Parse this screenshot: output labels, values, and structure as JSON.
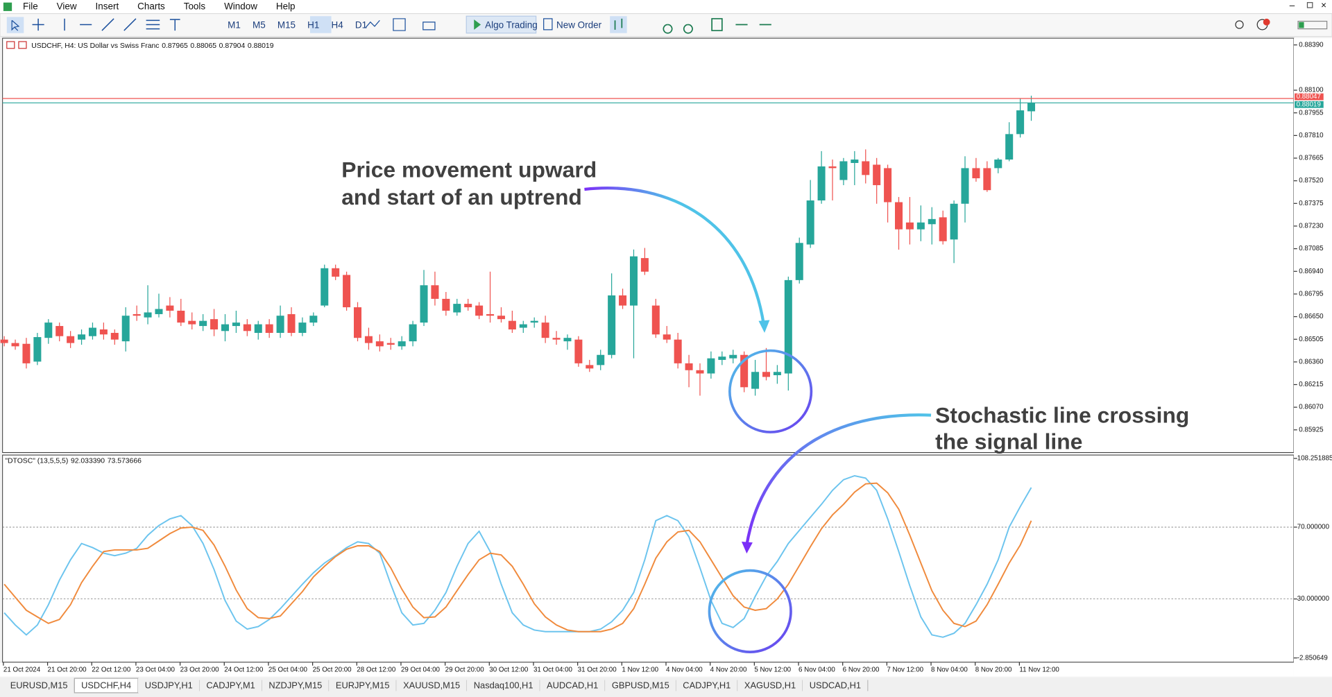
{
  "menu": [
    "File",
    "View",
    "Insert",
    "Charts",
    "Tools",
    "Window",
    "Help"
  ],
  "toolbar": {
    "timeframes": [
      "M1",
      "M5",
      "M15",
      "H1",
      "H4",
      "D1"
    ],
    "algo_trading": "Algo Trading",
    "new_order": "New Order"
  },
  "chart": {
    "symbol_line": "USDCHF, H4:  US Dollar vs Swiss Franc",
    "up_color": "#26a69a",
    "down_color": "#ef5350",
    "ylim": [
      0.8578,
      0.88433
    ],
    "yticks": [
      {
        "value": 0.8839,
        "label": "0.88390"
      },
      {
        "value": 0.881,
        "label": "0.88100"
      },
      0.87955,
      {
        "value": 0.8781,
        "label": "0.87810"
      },
      0.87665,
      {
        "value": 0.8752,
        "label": "0.87520"
      },
      0.87375,
      {
        "value": 0.8723,
        "label": "0.87230"
      },
      0.87085,
      {
        "value": 0.8694,
        "label": "0.86940"
      },
      0.86795,
      {
        "value": 0.8665,
        "label": "0.86650"
      },
      0.86505,
      {
        "value": 0.8636,
        "label": "0.86360"
      },
      0.86215,
      {
        "value": 0.8607,
        "label": "0.86070"
      },
      0.85925
    ],
    "ask": 0.88047,
    "ask_color": "#ef5350",
    "bid": 0.88019,
    "bid_color": "#26a69a",
    "x_labels": [
      "21 Oct 2024",
      "21 Oct 20:00",
      "22 Oct 12:00",
      "23 Oct 04:00",
      "23 Oct 20:00",
      "24 Oct 12:00",
      "25 Oct 04:00",
      "25 Oct 20:00",
      "28 Oct 12:00",
      "29 Oct 04:00",
      "29 Oct 20:00",
      "30 Oct 12:00",
      "31 Oct 04:00",
      "31 Oct 20:00",
      "1 Nov 12:00",
      "4 Nov 04:00",
      "4 Nov 20:00",
      "5 Nov 12:00",
      "6 Nov 04:00",
      "6 Nov 20:00",
      "7 Nov 12:00",
      "8 Nov 04:00",
      "8 Nov 20:00",
      "11 Nov 12:00"
    ],
    "candles": [
      [
        0.86503,
        0.86525,
        0.8646,
        0.86481
      ],
      [
        0.86481,
        0.86503,
        0.86438,
        0.8646
      ],
      [
        0.86476,
        0.86514,
        0.86318,
        0.86351
      ],
      [
        0.86362,
        0.86546,
        0.8634,
        0.86519
      ],
      [
        0.86514,
        0.86634,
        0.86476,
        0.86612
      ],
      [
        0.8659,
        0.86612,
        0.86492,
        0.86525
      ],
      [
        0.86525,
        0.86558,
        0.86449,
        0.86481
      ],
      [
        0.86503,
        0.86568,
        0.8647,
        0.86536
      ],
      [
        0.86525,
        0.86612,
        0.86503,
        0.86579
      ],
      [
        0.86568,
        0.86612,
        0.86503,
        0.86536
      ],
      [
        0.86546,
        0.86568,
        0.8647,
        0.86503
      ],
      [
        0.86492,
        0.8671,
        0.86427,
        0.86656
      ],
      [
        0.86666,
        0.86721,
        0.86623,
        0.86656
      ],
      [
        0.86645,
        0.86851,
        0.86601,
        0.86677
      ],
      [
        0.86666,
        0.86797,
        0.86645,
        0.86699
      ],
      [
        0.86721,
        0.86775,
        0.86645,
        0.86688
      ],
      [
        0.86688,
        0.86764,
        0.8659,
        0.86612
      ],
      [
        0.86623,
        0.86677,
        0.86568,
        0.86601
      ],
      [
        0.8659,
        0.86666,
        0.86558,
        0.86623
      ],
      [
        0.86634,
        0.86699,
        0.86525,
        0.86568
      ],
      [
        0.86558,
        0.86666,
        0.86492,
        0.86601
      ],
      [
        0.8659,
        0.86688,
        0.86546,
        0.86612
      ],
      [
        0.86601,
        0.86634,
        0.86525,
        0.86558
      ],
      [
        0.86546,
        0.86623,
        0.86503,
        0.86601
      ],
      [
        0.86601,
        0.86634,
        0.86514,
        0.86546
      ],
      [
        0.86546,
        0.86721,
        0.86514,
        0.86656
      ],
      [
        0.86666,
        0.8671,
        0.86525,
        0.86546
      ],
      [
        0.86546,
        0.86645,
        0.86525,
        0.86612
      ],
      [
        0.86612,
        0.86677,
        0.8659,
        0.86656
      ],
      [
        0.86721,
        0.86983,
        0.8671,
        0.8696
      ],
      [
        0.8696,
        0.86983,
        0.86884,
        0.86906
      ],
      [
        0.86917,
        0.86938,
        0.86688,
        0.8671
      ],
      [
        0.8671,
        0.86743,
        0.86492,
        0.86514
      ],
      [
        0.86525,
        0.86579,
        0.86438,
        0.86481
      ],
      [
        0.86492,
        0.86536,
        0.86427,
        0.8646
      ],
      [
        0.86481,
        0.86514,
        0.86438,
        0.8647
      ],
      [
        0.8646,
        0.86525,
        0.86438,
        0.86492
      ],
      [
        0.86492,
        0.86623,
        0.8646,
        0.86601
      ],
      [
        0.86612,
        0.86949,
        0.8659,
        0.86851
      ],
      [
        0.86851,
        0.86938,
        0.86721,
        0.86764
      ],
      [
        0.86764,
        0.86808,
        0.86656,
        0.86688
      ],
      [
        0.86677,
        0.86764,
        0.86656,
        0.86732
      ],
      [
        0.86732,
        0.86764,
        0.86688,
        0.8671
      ],
      [
        0.86721,
        0.86743,
        0.86634,
        0.86656
      ],
      [
        0.86666,
        0.86938,
        0.86612,
        0.86656
      ],
      [
        0.86656,
        0.8671,
        0.86612,
        0.86634
      ],
      [
        0.86623,
        0.86688,
        0.86546,
        0.86568
      ],
      [
        0.86579,
        0.86623,
        0.86546,
        0.86601
      ],
      [
        0.86612,
        0.86645,
        0.86579,
        0.86623
      ],
      [
        0.86612,
        0.86656,
        0.86481,
        0.86514
      ],
      [
        0.86514,
        0.86558,
        0.8647,
        0.86503
      ],
      [
        0.86492,
        0.86536,
        0.86438,
        0.86514
      ],
      [
        0.86503,
        0.86525,
        0.86329,
        0.86351
      ],
      [
        0.8634,
        0.86373,
        0.86296,
        0.86318
      ],
      [
        0.8634,
        0.86438,
        0.86307,
        0.86405
      ],
      [
        0.86405,
        0.86927,
        0.86383,
        0.86786
      ],
      [
        0.86786,
        0.86829,
        0.86699,
        0.86721
      ],
      [
        0.86721,
        0.8708,
        0.86383,
        0.87036
      ],
      [
        0.87025,
        0.8709,
        0.86917,
        0.86938
      ],
      [
        0.86721,
        0.86764,
        0.86514,
        0.86536
      ],
      [
        0.86536,
        0.8659,
        0.86481,
        0.86503
      ],
      [
        0.86503,
        0.86546,
        0.86318,
        0.86351
      ],
      [
        0.86351,
        0.86405,
        0.86198,
        0.86307
      ],
      [
        0.86307,
        0.86351,
        0.86144,
        0.86286
      ],
      [
        0.86286,
        0.86427,
        0.86253,
        0.86383
      ],
      [
        0.86373,
        0.86427,
        0.8634,
        0.86394
      ],
      [
        0.86383,
        0.86438,
        0.86351,
        0.86405
      ],
      [
        0.86405,
        0.86427,
        0.86166,
        0.86198
      ],
      [
        0.86188,
        0.86373,
        0.86144,
        0.86296
      ],
      [
        0.86296,
        0.86449,
        0.86242,
        0.86264
      ],
      [
        0.86275,
        0.8634,
        0.8622,
        0.86296
      ],
      [
        0.86286,
        0.86906,
        0.86177,
        0.86884
      ],
      [
        0.86884,
        0.87156,
        0.86862,
        0.87122
      ],
      [
        0.87112,
        0.87525,
        0.8709,
        0.87394
      ],
      [
        0.87394,
        0.8771,
        0.87373,
        0.87612
      ],
      [
        0.87612,
        0.87656,
        0.87394,
        0.87601
      ],
      [
        0.87525,
        0.87666,
        0.87492,
        0.87645
      ],
      [
        0.87634,
        0.8771,
        0.87492,
        0.87656
      ],
      [
        0.87645,
        0.87721,
        0.87503,
        0.87557
      ],
      [
        0.87623,
        0.87666,
        0.87373,
        0.87492
      ],
      [
        0.87601,
        0.87623,
        0.87253,
        0.87383
      ],
      [
        0.87383,
        0.87416,
        0.87079,
        0.87209
      ],
      [
        0.87253,
        0.87416,
        0.87112,
        0.87209
      ],
      [
        0.87209,
        0.87362,
        0.87133,
        0.87253
      ],
      [
        0.87242,
        0.87351,
        0.87112,
        0.87275
      ],
      [
        0.87286,
        0.87329,
        0.87112,
        0.87133
      ],
      [
        0.87144,
        0.87394,
        0.86993,
        0.87373
      ],
      [
        0.87373,
        0.87677,
        0.87253,
        0.87601
      ],
      [
        0.87601,
        0.87666,
        0.87514,
        0.87536
      ],
      [
        0.87601,
        0.87645,
        0.87449,
        0.8746
      ],
      [
        0.87601,
        0.87666,
        0.87568,
        0.87656
      ],
      [
        0.87656,
        0.87895,
        0.87645,
        0.87819
      ],
      [
        0.87819,
        0.88047,
        0.87797,
        0.87971
      ],
      [
        0.87965,
        0.88065,
        0.87904,
        0.88019
      ]
    ]
  },
  "indicator": {
    "header": "\"DTOSC\" (13,5,5,5)",
    "ylim": [
      -2.850649,
      108.251885
    ],
    "yticks": [
      -2.850649,
      {
        "value": 30,
        "label": "30.000000"
      },
      {
        "value": 70,
        "label": "70.000000"
      },
      108.251885
    ],
    "value_labels": [
      "92.033390",
      "73.573666"
    ],
    "series": [
      {
        "color": "#6cc4ee",
        "values": [
          22.3,
          15.5,
          10.0,
          15.5,
          26.8,
          40.5,
          51.8,
          60.9,
          58.6,
          55.5,
          54.1,
          55.5,
          58.2,
          65.5,
          70.9,
          74.6,
          76.4,
          70.9,
          60.9,
          46.4,
          29.1,
          17.7,
          13.2,
          14.6,
          18.6,
          24.6,
          31.4,
          38.2,
          44.6,
          50.0,
          54.1,
          58.6,
          61.8,
          60.9,
          55.5,
          38.2,
          22.3,
          15.5,
          16.4,
          23.7,
          33.6,
          48.2,
          60.9,
          67.7,
          56.4,
          38.2,
          22.3,
          15.5,
          12.7,
          11.8,
          11.8,
          11.8,
          11.8,
          11.8,
          13.2,
          17.3,
          23.7,
          33.6,
          51.8,
          73.6,
          76.4,
          73.6,
          64.6,
          47.3,
          29.1,
          16.4,
          14.1,
          19.1,
          31.4,
          42.7,
          50.9,
          60.9,
          68.2,
          75.5,
          82.7,
          90.5,
          96.4,
          98.6,
          97.3,
          90.5,
          74.6,
          56.4,
          37.3,
          20.0,
          10.0,
          8.7,
          10.9,
          16.4,
          26.8,
          38.2,
          51.8,
          70.0,
          81.4,
          92.03339
        ]
      },
      {
        "color": "#f08a3c",
        "values": [
          38.2,
          30.9,
          23.7,
          20.0,
          16.4,
          18.6,
          26.8,
          39.1,
          48.2,
          56.4,
          57.3,
          57.3,
          57.3,
          58.2,
          62.3,
          66.4,
          69.5,
          70.0,
          68.2,
          60.0,
          48.2,
          35.0,
          24.6,
          19.6,
          19.1,
          20.5,
          27.3,
          34.1,
          42.3,
          48.2,
          53.6,
          57.7,
          59.6,
          59.6,
          56.4,
          47.3,
          35.5,
          25.5,
          19.6,
          20.0,
          25.5,
          34.6,
          43.6,
          51.8,
          55.5,
          54.5,
          48.2,
          38.2,
          27.3,
          20.0,
          15.5,
          12.7,
          11.8,
          11.8,
          11.8,
          13.2,
          16.4,
          24.6,
          38.2,
          52.7,
          61.8,
          67.3,
          68.2,
          61.8,
          51.8,
          41.8,
          31.8,
          25.5,
          23.7,
          24.6,
          30.0,
          38.2,
          48.6,
          59.1,
          69.1,
          76.8,
          82.7,
          89.5,
          94.1,
          94.5,
          89.1,
          80.0,
          65.5,
          50.0,
          34.6,
          23.7,
          16.4,
          14.6,
          17.7,
          26.8,
          38.2,
          50.0,
          60.0,
          73.573666
        ]
      }
    ]
  },
  "annotations": [
    [
      "Price movement upward",
      "and start of an uptrend"
    ],
    [
      "Stochastic line crossing",
      "the signal line"
    ]
  ],
  "tabs": [
    "EURUSD,M15",
    "USDCHF,H4",
    "USDJPY,H1",
    "CADJPY,M1",
    "NZDJPY,M15",
    "EURJPY,M15",
    "XAUUSD,M15",
    "Nasdaq100,H1",
    "AUDCAD,H1",
    "GBPUSD,M15",
    "CADJPY,H1",
    "XAGUSD,H1",
    "USDCAD,H1"
  ]
}
